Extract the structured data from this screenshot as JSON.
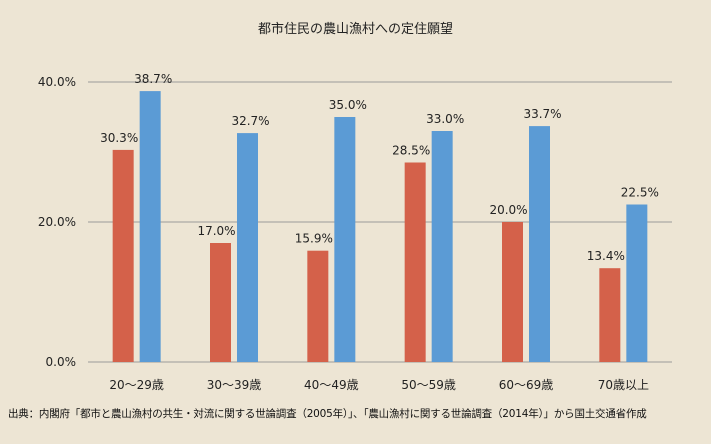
{
  "title": "都市住民の農山漁村への定住願望",
  "source": "出典：内閣府「都市と農山漁村の共生・対流に関する世論調査（2005年）」、「農山漁村に関する世論調査（2014年）」から国土交通省作成",
  "chart_data": {
    "type": "bar",
    "title": "都市住民の農山漁村への定住願望",
    "categories": [
      "20～29歳",
      "30～39歳",
      "40～49歳",
      "50～59歳",
      "60～69歳",
      "70歳以上"
    ],
    "series": [
      {
        "values": [
          30.3,
          17.0,
          15.9,
          28.5,
          20.0,
          13.4
        ],
        "color": "#d4614a",
        "labels": [
          "30.3%",
          "17.0%",
          "15.9%",
          "28.5%",
          "20.0%",
          "13.4%"
        ]
      },
      {
        "values": [
          38.7,
          32.7,
          35.0,
          33.0,
          33.7,
          22.5
        ],
        "color": "#5b9bd5",
        "labels": [
          "38.7%",
          "32.7%",
          "35.0%",
          "33.0%",
          "33.7%",
          "22.5%"
        ]
      }
    ],
    "yticks": [
      "0.0%",
      "20.0%",
      "40.0%"
    ],
    "ytick_values": [
      0,
      20,
      40
    ],
    "ylim": [
      0,
      40
    ],
    "grid": true,
    "legend": "none"
  }
}
